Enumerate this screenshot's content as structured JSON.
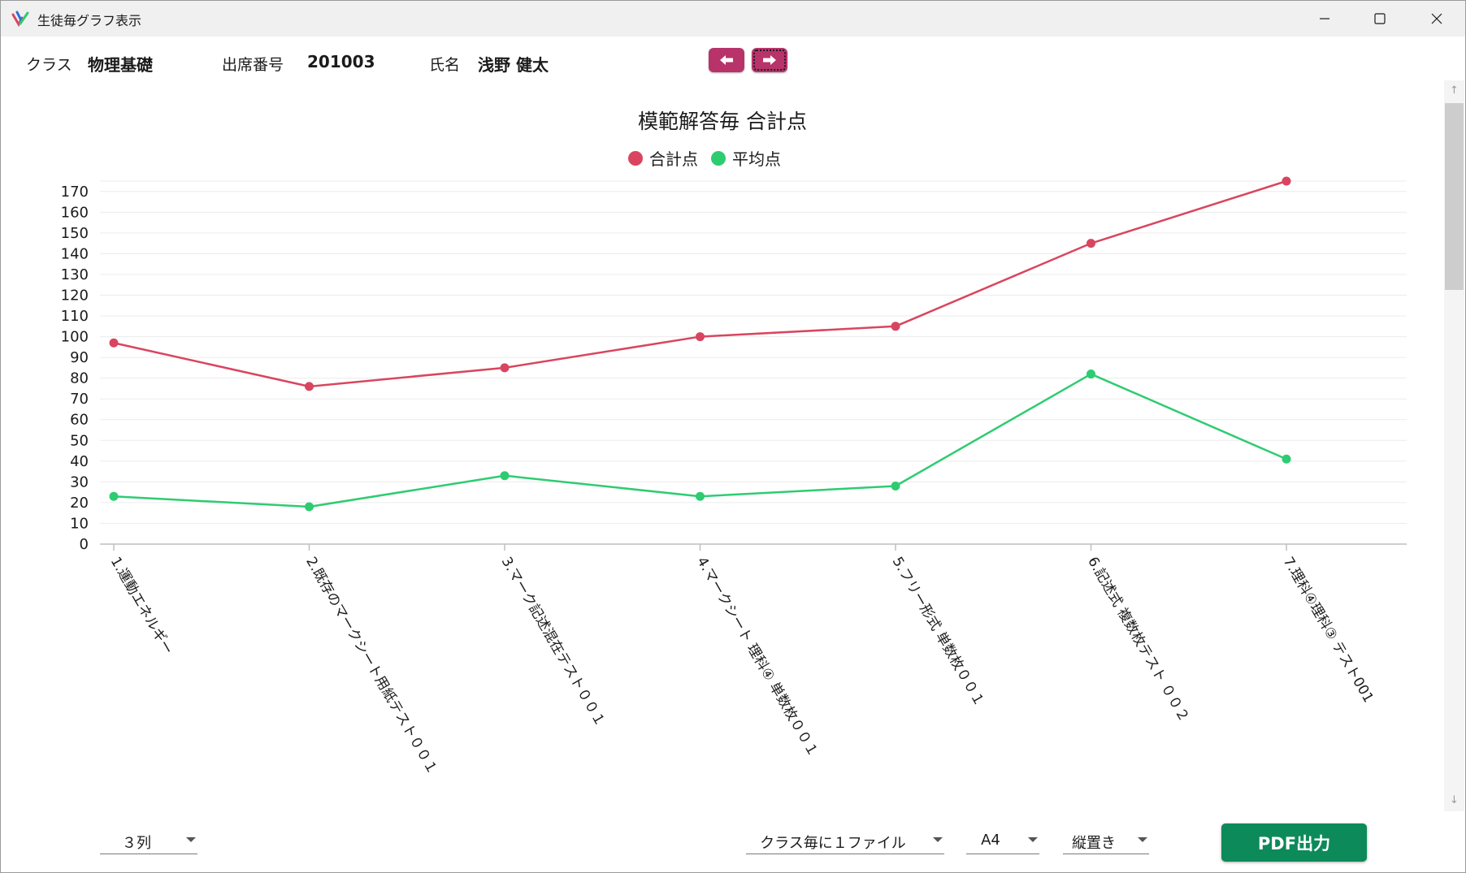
{
  "window": {
    "title": "生徒毎グラフ表示",
    "controls": {
      "minimize": "minimize-icon",
      "maximize": "maximize-icon",
      "close": "close-icon"
    }
  },
  "header": {
    "class_label": "クラス",
    "class_value": "物理基礎",
    "number_label": "出席番号",
    "number_value": "201003",
    "name_label": "氏名",
    "name_value": "浅野 健太",
    "prev_icon": "arrow-left-icon",
    "next_icon": "arrow-right-icon"
  },
  "colors": {
    "series_total": "#d9455f",
    "series_average": "#2ecc71",
    "nav_button": "#b8336a",
    "pdf_button": "#0d8a5a"
  },
  "chart_data": {
    "type": "line",
    "title": "模範解答毎 合計点",
    "legend_position": "top-center",
    "grid": true,
    "ylim": [
      0,
      175
    ],
    "yticks": [
      0,
      10,
      20,
      30,
      40,
      50,
      60,
      70,
      80,
      90,
      100,
      110,
      120,
      130,
      140,
      150,
      160,
      170
    ],
    "categories": [
      "1.運動エネルギー",
      "2.既存のマークシート用紙テスト００１",
      "3.マーク記述混在テスト００１",
      "4.マークシート 理科④ 単数枚００１",
      "5.フリー形式 単数枚００１",
      "6.記述式 複数枚テスト ００２",
      "7.理科④理科③ テスト001"
    ],
    "series": [
      {
        "name": "合計点",
        "color": "#d9455f",
        "values": [
          97,
          76,
          85,
          100,
          105,
          145,
          175
        ]
      },
      {
        "name": "平均点",
        "color": "#2ecc71",
        "values": [
          23,
          18,
          33,
          23,
          28,
          82,
          41
        ]
      }
    ]
  },
  "footer": {
    "columns_value": "３列",
    "file_mode_value": "クラス毎に１ファイル",
    "paper_size_value": "A4",
    "orientation_value": "縦置き",
    "pdf_button_label": "PDF出力"
  }
}
